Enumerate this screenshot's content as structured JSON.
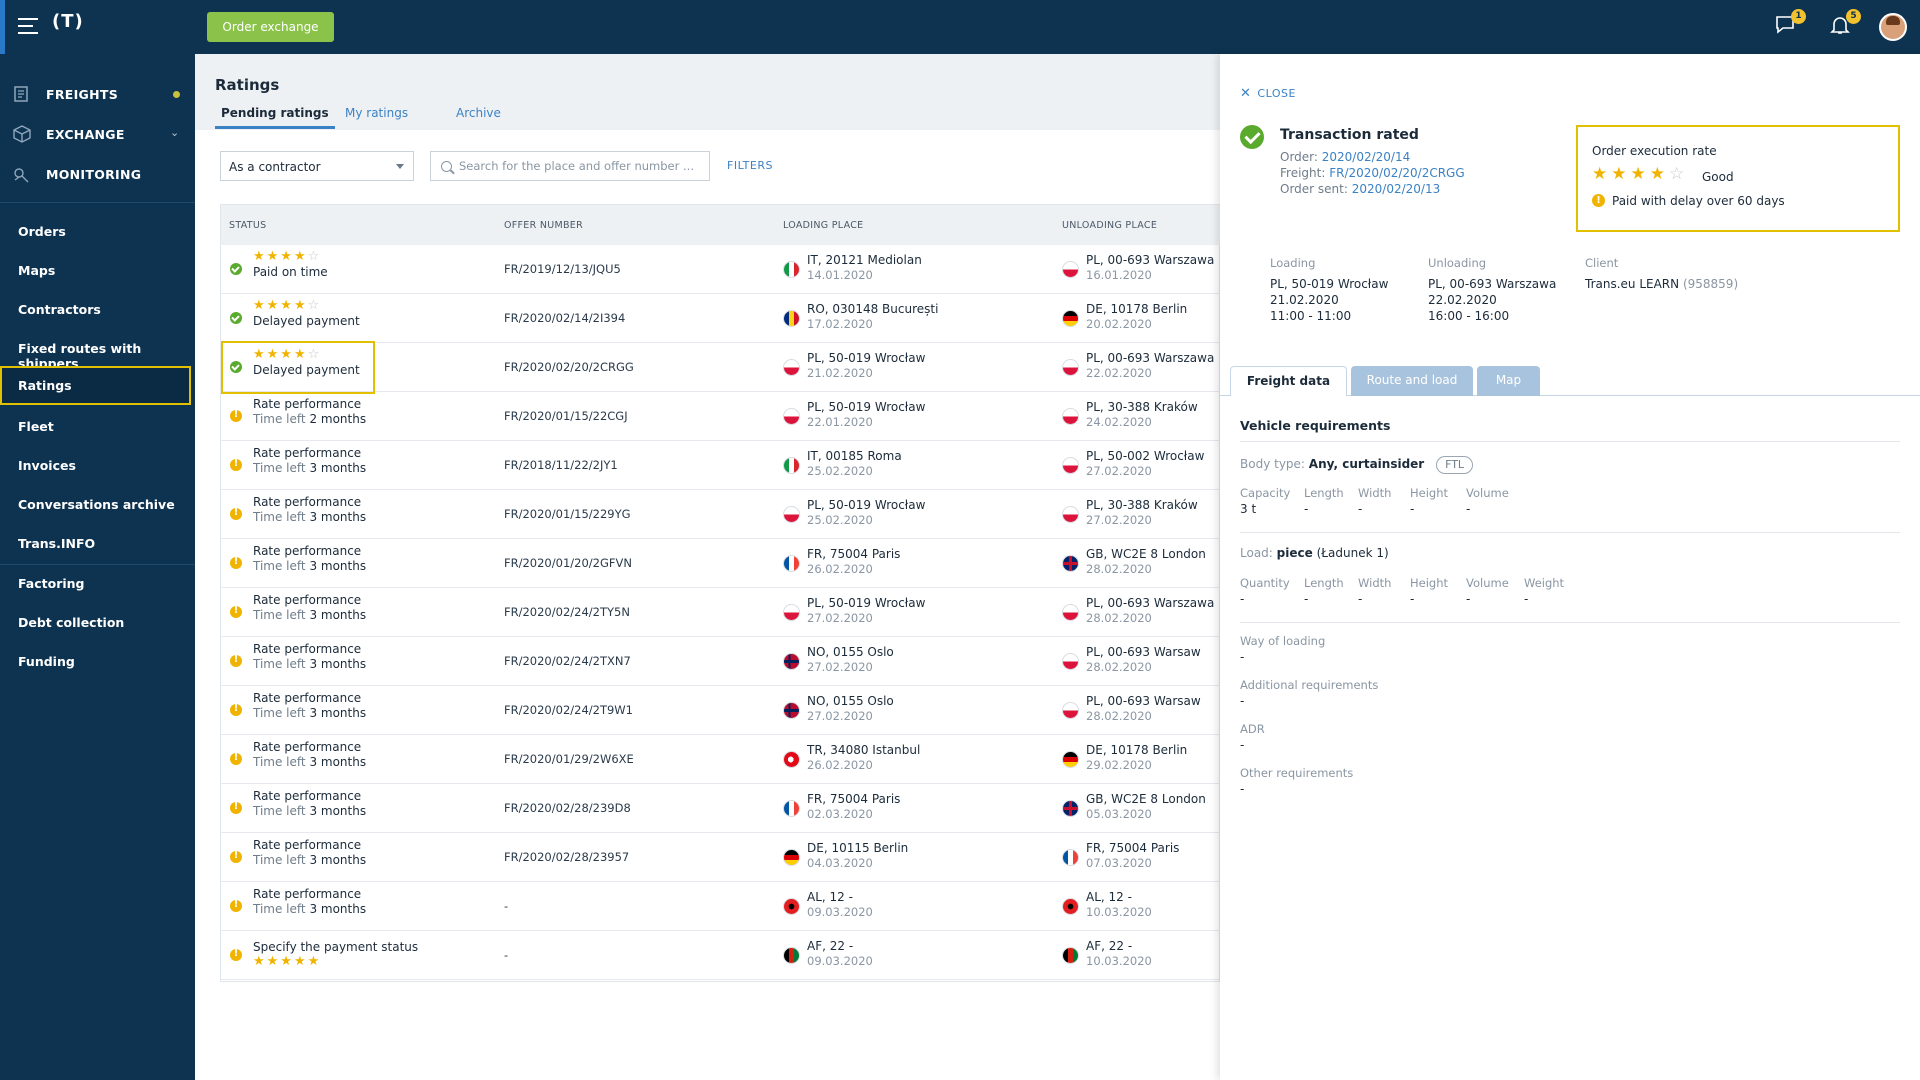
{
  "app": {
    "logo": "(T)",
    "order_exchange": "Order exchange",
    "messages_count": "1",
    "notifications_count": "5"
  },
  "sidebar": {
    "main": [
      {
        "label": "FREIGHTS",
        "icon": "freights-icon"
      },
      {
        "label": "EXCHANGE",
        "icon": "exchange-icon"
      },
      {
        "label": "MONITORING",
        "icon": "monitoring-icon"
      }
    ],
    "items": [
      {
        "label": "Orders"
      },
      {
        "label": "Maps"
      },
      {
        "label": "Contractors"
      },
      {
        "label": "Fixed routes with shippers"
      },
      {
        "label": "Ratings"
      },
      {
        "label": "Fleet"
      },
      {
        "label": "Invoices"
      },
      {
        "label": "Conversations archive"
      },
      {
        "label": "Trans.INFO"
      },
      {
        "label": "Factoring"
      },
      {
        "label": "Debt collection"
      },
      {
        "label": "Funding"
      }
    ]
  },
  "page": {
    "title": "Ratings",
    "tabs": [
      "Pending ratings",
      "My ratings",
      "Archive"
    ],
    "role_select": "As a contractor",
    "search_placeholder": "Search for the place and offer number ...",
    "filters": "FILTERS"
  },
  "table": {
    "headers": [
      "STATUS",
      "OFFER NUMBER",
      "LOADING PLACE",
      "UNLOADING PLACE"
    ],
    "rows": [
      {
        "stars": "★★★★",
        "empty": "☆",
        "s1": "Paid on time",
        "s1muted": "",
        "s2": "",
        "offer": "FR/2019/12/13/JQU5",
        "load": "IT, 20121 Mediolan",
        "load_date": "14.01.2020",
        "unload": "PL, 00-693 Warszawa",
        "unload_date": "16.01.2020"
      },
      {
        "stars": "★★★★",
        "empty": "☆",
        "s1": "Delayed payment",
        "s1muted": "",
        "s2": "",
        "offer": "FR/2020/02/14/2I394",
        "load": "RO, 030148 București",
        "load_date": "17.02.2020",
        "unload": "DE, 10178 Berlin",
        "unload_date": "20.02.2020"
      },
      {
        "stars": "★★★★",
        "empty": "☆",
        "s1": "Delayed payment",
        "s1muted": "",
        "s2": "",
        "offer": "FR/2020/02/20/2CRGG",
        "load": "PL, 50-019 Wrocław",
        "load_date": "21.02.2020",
        "unload": "PL, 00-693 Warszawa",
        "unload_date": "22.02.2020"
      },
      {
        "s1": "Rate performance",
        "s1muted": "Time left",
        "s2": "2 months",
        "offer": "FR/2020/01/15/22CGJ",
        "load": "PL, 50-019 Wrocław",
        "load_date": "22.01.2020",
        "unload": "PL, 30-388 Kraków",
        "unload_date": "24.02.2020"
      },
      {
        "s1": "Rate performance",
        "s1muted": "Time left",
        "s2": "3 months",
        "offer": "FR/2018/11/22/2JY1",
        "load": "IT, 00185 Roma",
        "load_date": "25.02.2020",
        "unload": "PL, 50-002 Wrocław",
        "unload_date": "27.02.2020"
      },
      {
        "s1": "Rate performance",
        "s1muted": "Time left",
        "s2": "3 months",
        "offer": "FR/2020/01/15/229YG",
        "load": "PL, 50-019 Wrocław",
        "load_date": "25.02.2020",
        "unload": "PL, 30-388 Kraków",
        "unload_date": "27.02.2020"
      },
      {
        "s1": "Rate performance",
        "s1muted": "Time left",
        "s2": "3 months",
        "offer": "FR/2020/01/20/2GFVN",
        "load": "FR, 75004 Paris",
        "load_date": "26.02.2020",
        "unload": "GB, WC2E 8 London",
        "unload_date": "28.02.2020"
      },
      {
        "s1": "Rate performance",
        "s1muted": "Time left",
        "s2": "3 months",
        "offer": "FR/2020/02/24/2TY5N",
        "load": "PL, 50-019 Wrocław",
        "load_date": "27.02.2020",
        "unload": "PL, 00-693 Warszawa",
        "unload_date": "28.02.2020"
      },
      {
        "s1": "Rate performance",
        "s1muted": "Time left",
        "s2": "3 months",
        "offer": "FR/2020/02/24/2TXN7",
        "load": "NO, 0155 Oslo",
        "load_date": "27.02.2020",
        "unload": "PL, 00-693 Warsaw",
        "unload_date": "28.02.2020"
      },
      {
        "s1": "Rate performance",
        "s1muted": "Time left",
        "s2": "3 months",
        "offer": "FR/2020/02/24/2T9W1",
        "load": "NO, 0155 Oslo",
        "load_date": "27.02.2020",
        "unload": "PL, 00-693 Warsaw",
        "unload_date": "28.02.2020"
      },
      {
        "s1": "Rate performance",
        "s1muted": "Time left",
        "s2": "3 months",
        "offer": "FR/2020/01/29/2W6XE",
        "load": "TR, 34080 Istanbul",
        "load_date": "26.02.2020",
        "unload": "DE, 10178 Berlin",
        "unload_date": "29.02.2020"
      },
      {
        "s1": "Rate performance",
        "s1muted": "Time left",
        "s2": "3 months",
        "offer": "FR/2020/02/28/239D8",
        "load": "FR, 75004 Paris",
        "load_date": "02.03.2020",
        "unload": "GB, WC2E 8 London",
        "unload_date": "05.03.2020"
      },
      {
        "s1": "Rate performance",
        "s1muted": "Time left",
        "s2": "3 months",
        "offer": "FR/2020/02/28/23957",
        "load": "DE, 10115 Berlin",
        "load_date": "04.03.2020",
        "unload": "FR, 75004 Paris",
        "unload_date": "07.03.2020"
      },
      {
        "s1": "Rate performance",
        "s1muted": "Time left",
        "s2": "3 months",
        "offer": "-",
        "load": "AL, 12 -",
        "load_date": "09.03.2020",
        "unload": "AL, 12 -",
        "unload_date": "10.03.2020"
      },
      {
        "s1": "Specify the payment status",
        "s1muted": "",
        "s2": "",
        "stars_below": "★★★★★",
        "offer": "-",
        "load": "AF, 22 -",
        "load_date": "09.03.2020",
        "unload": "AF, 22 -",
        "unload_date": "10.03.2020"
      }
    ]
  },
  "panel": {
    "close": "CLOSE",
    "title": "Transaction rated",
    "order_label": "Order:",
    "order_value": "2020/02/20/14",
    "freight_label": "Freight:",
    "freight_value": "FR/2020/02/20/2CRGG",
    "sent_label": "Order sent:",
    "sent_value": "2020/02/20/13",
    "rate": {
      "title": "Order execution rate",
      "stars": "★★★★",
      "empty": "☆",
      "label": "Good",
      "warning": "Paid with delay over 60 days"
    },
    "loading": {
      "label": "Loading",
      "place": "PL, 50-019 Wrocław",
      "date": "21.02.2020",
      "time": "11:00 - 11:00"
    },
    "unloading": {
      "label": "Unloading",
      "place": "PL, 00-693 Warszawa",
      "date": "22.02.2020",
      "time": "16:00 - 16:00"
    },
    "client": {
      "label": "Client",
      "name": "Trans.eu LEARN",
      "id": "(958859)"
    },
    "tabs": [
      "Freight data",
      "Route and load",
      "Map"
    ],
    "vehicle": {
      "title": "Vehicle requirements",
      "body_label": "Body type:",
      "body_value": "Any, curtainsider",
      "ftl": "FTL",
      "fields": [
        {
          "label": "Capacity",
          "value": "3 t"
        },
        {
          "label": "Length",
          "value": "-"
        },
        {
          "label": "Width",
          "value": "-"
        },
        {
          "label": "Height",
          "value": "-"
        },
        {
          "label": "Volume",
          "value": "-"
        }
      ]
    },
    "load": {
      "label": "Load:",
      "value": "piece",
      "note": "(Ładunek 1)",
      "fields": [
        {
          "label": "Quantity",
          "value": "-"
        },
        {
          "label": "Length",
          "value": "-"
        },
        {
          "label": "Width",
          "value": "-"
        },
        {
          "label": "Height",
          "value": "-"
        },
        {
          "label": "Volume",
          "value": "-"
        },
        {
          "label": "Weight",
          "value": "-"
        }
      ]
    },
    "extra": [
      {
        "label": "Way of loading",
        "value": "-"
      },
      {
        "label": "Additional requirements",
        "value": "-"
      },
      {
        "label": "ADR",
        "value": "-"
      },
      {
        "label": "Other requirements",
        "value": "-"
      }
    ]
  },
  "colors": {
    "navy": "#0e3350",
    "accent": "#3b82c4",
    "green": "#5aaa2e",
    "amber": "#f0b400",
    "highlight": "#e0c000"
  }
}
